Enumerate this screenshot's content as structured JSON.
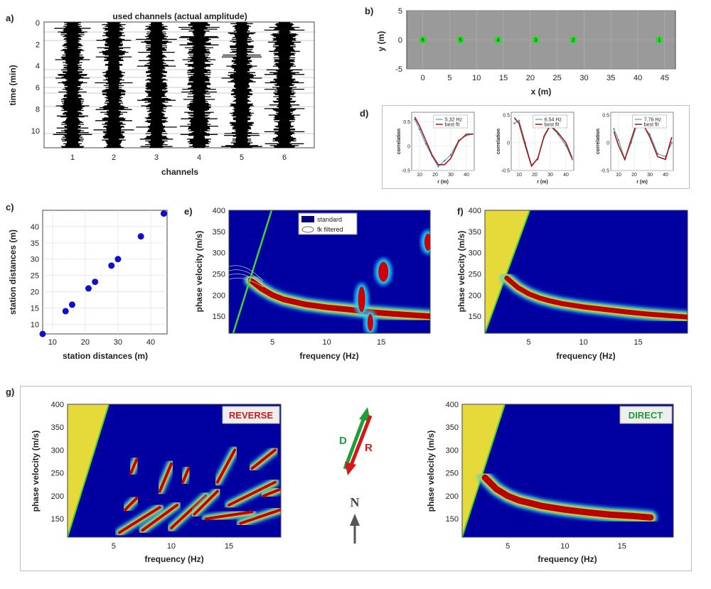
{
  "panel_labels": {
    "a": "a)",
    "b": "b)",
    "c": "c)",
    "d": "d)",
    "e": "e)",
    "f": "f)",
    "g": "g)"
  },
  "chart_data": [
    {
      "id": "a",
      "type": "heatmap",
      "title": "used channels (actual amplitude)",
      "xlabel": "channels",
      "ylabel": "time (min)",
      "xticks": [
        "1",
        "2",
        "3",
        "4",
        "5",
        "6"
      ],
      "yticks": [
        "0",
        "2",
        "4",
        "6",
        "8",
        "10"
      ],
      "ylim": [
        0,
        11
      ]
    },
    {
      "id": "b",
      "type": "scatter",
      "xlabel": "x (m)",
      "ylabel": "y (m)",
      "xlim": [
        -3,
        47
      ],
      "ylim": [
        -5,
        5
      ],
      "xticks": [
        "0",
        "5",
        "10",
        "15",
        "20",
        "25",
        "30",
        "35",
        "40",
        "45"
      ],
      "yticks": [
        "5",
        "0",
        "-5"
      ],
      "x": [
        0,
        7,
        14,
        21,
        28,
        44
      ],
      "y": [
        0,
        0,
        0,
        0,
        0,
        0
      ],
      "point_labels": [
        "6",
        "5",
        "4",
        "3",
        "2",
        "1"
      ],
      "color": "#22dd22"
    },
    {
      "id": "c",
      "type": "scatter",
      "xlabel": "station distances (m)",
      "ylabel": "station distances (m)",
      "xlim": [
        7,
        45
      ],
      "ylim": [
        7,
        45
      ],
      "xticks": [
        "10",
        "20",
        "30",
        "40"
      ],
      "yticks": [
        "10",
        "15",
        "20",
        "25",
        "30",
        "35",
        "40"
      ],
      "x": [
        7,
        14,
        16,
        21,
        23,
        28,
        30,
        37,
        44
      ],
      "y": [
        7,
        14,
        16,
        21,
        23,
        28,
        30,
        37,
        44
      ],
      "color": "#1010c8"
    },
    {
      "id": "d",
      "type": "line",
      "subplots": [
        {
          "xlabel": "r (m)",
          "ylabel": "correlation",
          "xticks": [
            "10",
            "20",
            "30",
            "40"
          ],
          "yticks": [
            "0.5",
            "0",
            "-0.5"
          ],
          "ylim": [
            -0.5,
            0.7
          ],
          "xlim": [
            5,
            45
          ],
          "legend": [
            "5.32 Hz",
            "best fit"
          ],
          "series": [
            {
              "name": "5.32 Hz",
              "x": [
                7,
                10,
                14,
                18,
                22,
                26,
                30,
                35,
                40,
                44
              ],
              "values": [
                0.55,
                0.35,
                0.05,
                -0.2,
                -0.42,
                -0.3,
                -0.18,
                0.12,
                0.22,
                0.25
              ]
            },
            {
              "name": "best fit",
              "x": [
                7,
                10,
                14,
                18,
                22,
                26,
                30,
                35,
                40,
                44
              ],
              "values": [
                0.6,
                0.42,
                0.12,
                -0.18,
                -0.38,
                -0.38,
                -0.25,
                0.1,
                0.25,
                0.25
              ]
            }
          ]
        },
        {
          "xlabel": "r (m)",
          "ylabel": "correlation",
          "xticks": [
            "10",
            "20",
            "30",
            "40"
          ],
          "yticks": [
            "0.5",
            "0",
            "-0.5"
          ],
          "ylim": [
            -0.5,
            0.55
          ],
          "xlim": [
            5,
            45
          ],
          "legend": [
            "6.54 Hz",
            "best fit"
          ],
          "series": [
            {
              "name": "6.54 Hz",
              "x": [
                7,
                10,
                14,
                18,
                22,
                26,
                30,
                35,
                40,
                44
              ],
              "values": [
                0.35,
                0.4,
                0.0,
                -0.4,
                -0.3,
                0.1,
                0.3,
                0.15,
                -0.05,
                -0.3
              ]
            },
            {
              "name": "best fit",
              "x": [
                7,
                10,
                14,
                18,
                22,
                26,
                30,
                35,
                40,
                44
              ],
              "values": [
                0.45,
                0.35,
                -0.05,
                -0.42,
                -0.28,
                0.12,
                0.32,
                0.18,
                0.0,
                -0.28
              ]
            }
          ]
        },
        {
          "xlabel": "r (m)",
          "ylabel": "correlation",
          "xticks": [
            "10",
            "20",
            "30",
            "40"
          ],
          "yticks": [
            "0.5",
            "0",
            "-0.5"
          ],
          "ylim": [
            -0.5,
            0.55
          ],
          "xlim": [
            5,
            45
          ],
          "legend": [
            "7.76 Hz",
            "best fit"
          ],
          "series": [
            {
              "name": "7.76 Hz",
              "x": [
                7,
                10,
                14,
                18,
                22,
                26,
                30,
                35,
                40,
                44
              ],
              "values": [
                0.25,
                0.05,
                -0.3,
                0.0,
                0.35,
                0.3,
                0.15,
                -0.2,
                -0.25,
                0.0
              ]
            },
            {
              "name": "best fit",
              "x": [
                7,
                10,
                14,
                18,
                22,
                26,
                30,
                35,
                40,
                44
              ],
              "values": [
                0.2,
                -0.05,
                -0.3,
                0.05,
                0.4,
                0.32,
                0.1,
                -0.25,
                -0.3,
                0.1
              ]
            }
          ]
        }
      ]
    },
    {
      "id": "e",
      "type": "heatmap",
      "xlabel": "frequency (Hz)",
      "ylabel": "phase velocity (m/s)",
      "xlim": [
        1,
        19.5
      ],
      "ylim": [
        110,
        400
      ],
      "xticks": [
        "5",
        "10",
        "15"
      ],
      "yticks": [
        "150",
        "200",
        "250",
        "300",
        "350",
        "400"
      ],
      "legend": [
        "standard",
        "fk filtered"
      ],
      "ridge_x": [
        3,
        4,
        5,
        6,
        7,
        8,
        10,
        12,
        14,
        16,
        19.5
      ],
      "ridge_y": [
        235,
        215,
        200,
        190,
        184,
        178,
        171,
        166,
        160,
        156,
        150
      ]
    },
    {
      "id": "f",
      "type": "heatmap",
      "xlabel": "frequency (Hz)",
      "ylabel": "phase velocity (m/s)",
      "xlim": [
        1,
        19.5
      ],
      "ylim": [
        110,
        400
      ],
      "xticks": [
        "5",
        "10",
        "15"
      ],
      "yticks": [
        "150",
        "200",
        "250",
        "300",
        "350",
        "400"
      ],
      "ridge_x": [
        3,
        4,
        5,
        6,
        7,
        8,
        10,
        12,
        14,
        16,
        19.5
      ],
      "ridge_y": [
        240,
        218,
        203,
        193,
        186,
        180,
        172,
        166,
        160,
        155,
        148
      ]
    },
    {
      "id": "g_reverse",
      "type": "heatmap",
      "label": "REVERSE",
      "xlabel": "frequency (Hz)",
      "ylabel": "phase velocity (m/s)",
      "xlim": [
        1,
        19.5
      ],
      "ylim": [
        110,
        400
      ],
      "xticks": [
        "5",
        "10",
        "15"
      ],
      "yticks": [
        "150",
        "200",
        "250",
        "300",
        "350",
        "400"
      ]
    },
    {
      "id": "g_direct",
      "type": "heatmap",
      "label": "DIRECT",
      "xlabel": "frequency (Hz)",
      "ylabel": "phase velocity (m/s)",
      "xlim": [
        1,
        19.5
      ],
      "ylim": [
        110,
        400
      ],
      "xticks": [
        "5",
        "10",
        "15"
      ],
      "yticks": [
        "150",
        "200",
        "250",
        "300",
        "350",
        "400"
      ],
      "ridge_x": [
        3,
        4,
        5,
        6,
        7,
        8,
        10,
        12,
        14,
        16,
        17.5
      ],
      "ridge_y": [
        240,
        215,
        200,
        190,
        184,
        178,
        170,
        164,
        159,
        156,
        153
      ]
    }
  ],
  "arrows": {
    "direct": "D",
    "reverse": "R",
    "north": "N",
    "direct_color": "#1e9e36",
    "reverse_color": "#d01a1a"
  },
  "colors": {
    "map_bg": "#0000a0",
    "yellow": "#e6d93a",
    "green_line": "#3bd43b"
  }
}
